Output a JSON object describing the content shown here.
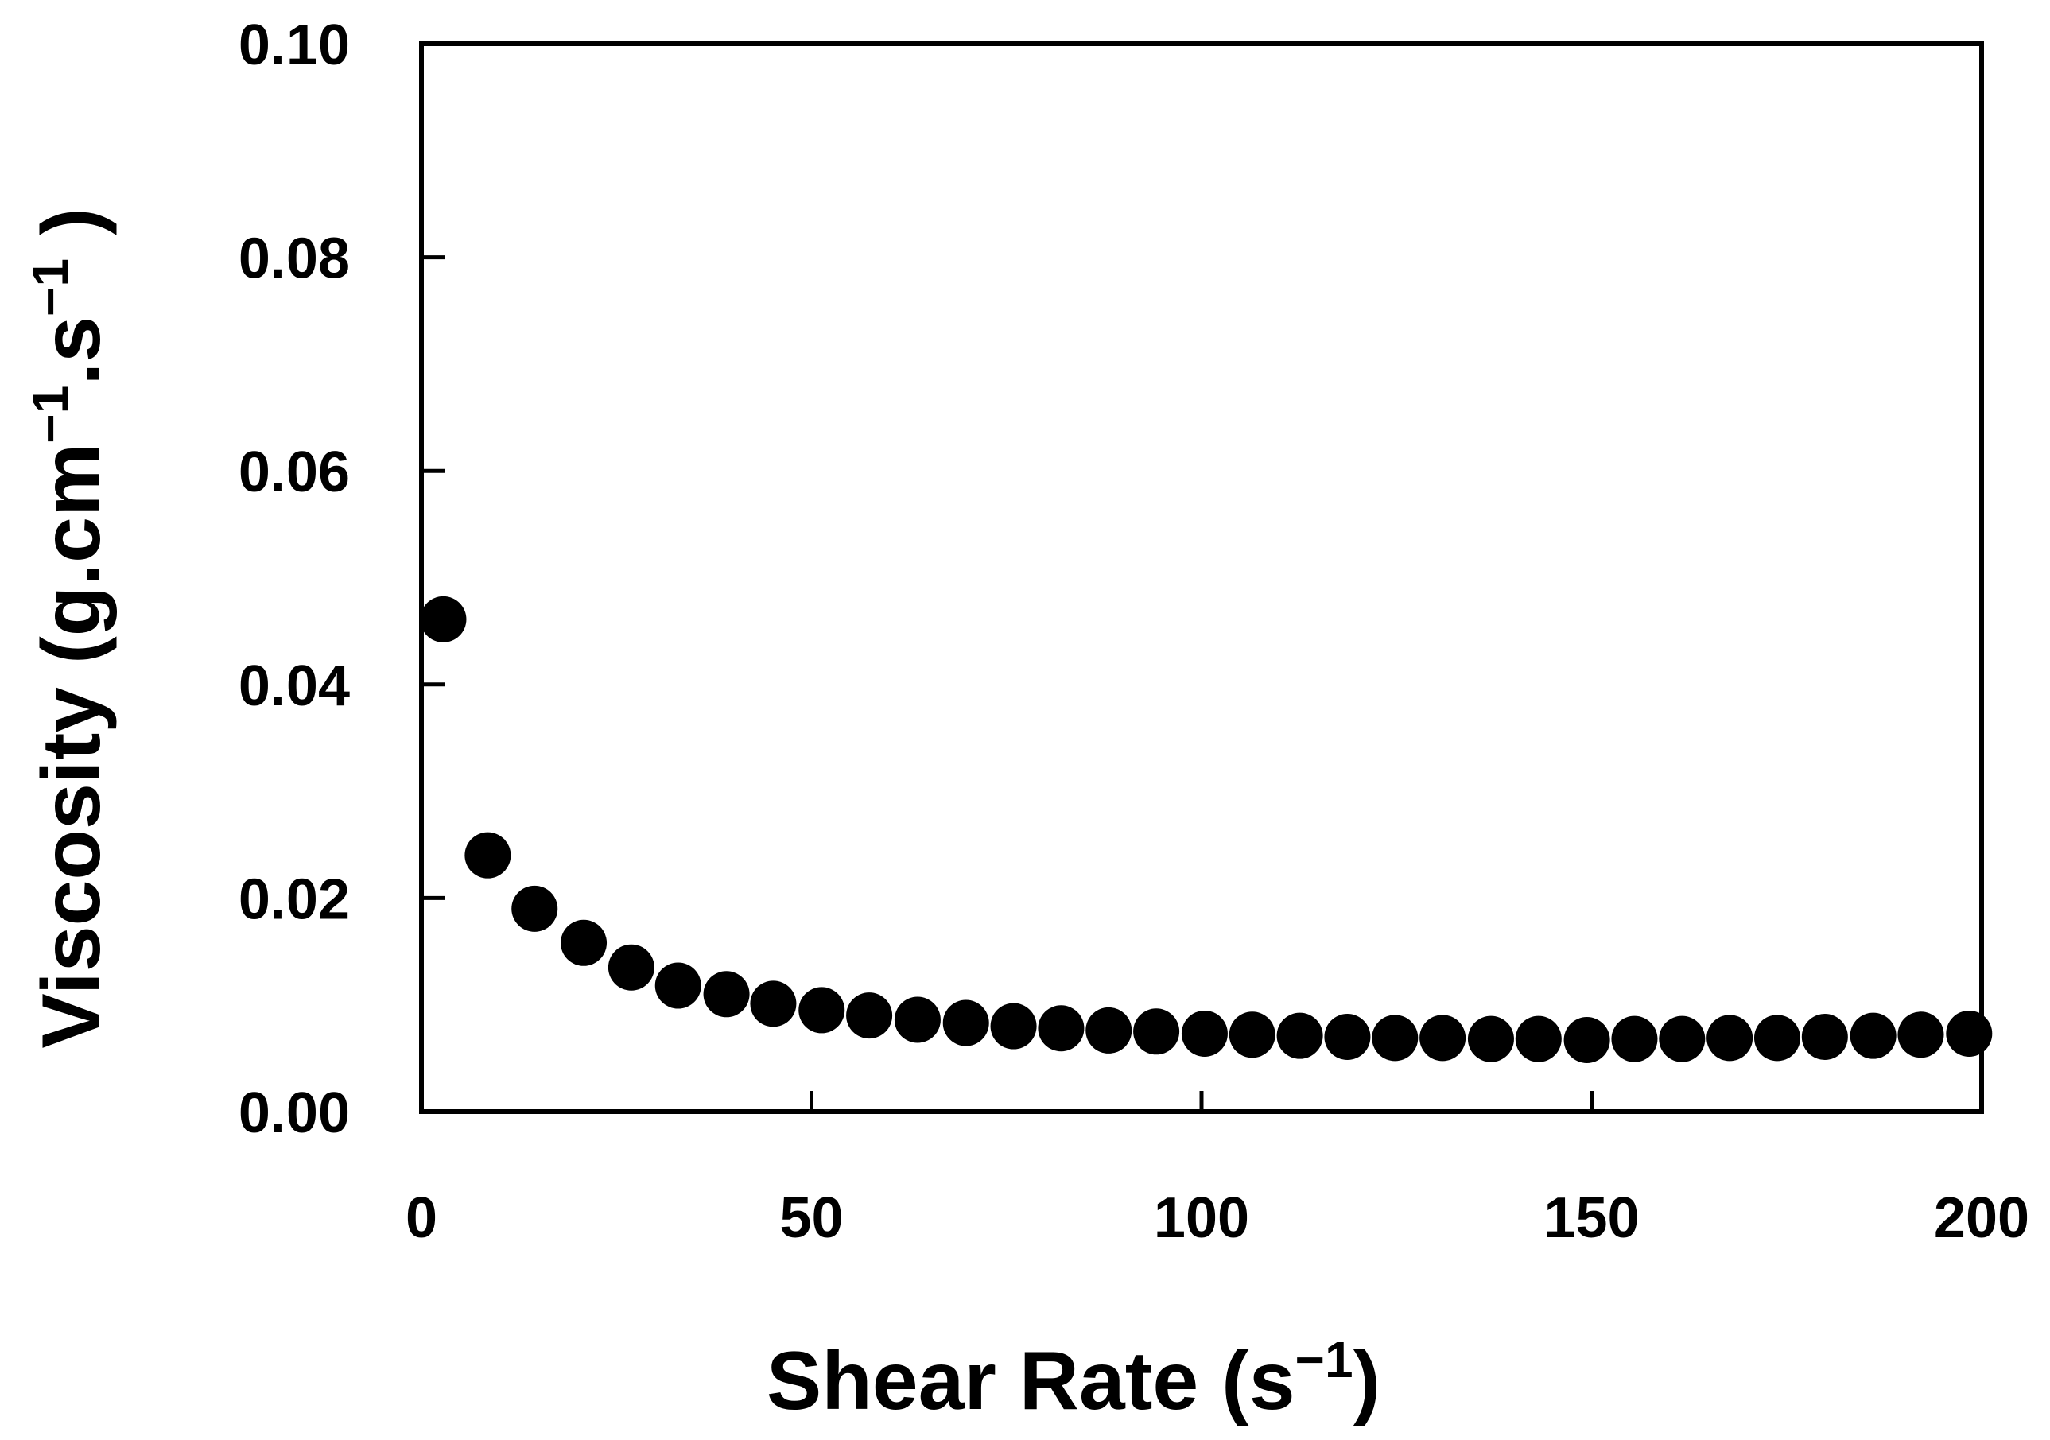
{
  "chart_data": {
    "type": "scatter",
    "title": "",
    "xlabel": {
      "main": "Shear Rate (s",
      "sup": "−1",
      "close": ")"
    },
    "ylabel": {
      "main": "Viscosity (g.cm",
      "sup1": "−1",
      "mid": ".s",
      "sup2": "−1",
      "close": " )"
    },
    "xlim": [
      0,
      200
    ],
    "ylim": [
      0,
      0.1
    ],
    "xticks": [
      {
        "value": 0,
        "label": "0"
      },
      {
        "value": 50,
        "label": "50"
      },
      {
        "value": 100,
        "label": "100"
      },
      {
        "value": 150,
        "label": "150"
      },
      {
        "value": 200,
        "label": "200"
      }
    ],
    "yticks": [
      {
        "value": 0.0,
        "label": "0.00"
      },
      {
        "value": 0.02,
        "label": "0.02"
      },
      {
        "value": 0.04,
        "label": "0.04"
      },
      {
        "value": 0.06,
        "label": "0.06"
      },
      {
        "value": 0.08,
        "label": "0.08"
      },
      {
        "value": 0.1,
        "label": "0.10"
      }
    ],
    "grid": false,
    "legend": "none",
    "marker_color": "#000000",
    "series": [
      {
        "name": "Viscosity",
        "points": [
          {
            "x": 2.8,
            "y": 0.0461
          },
          {
            "x": 8.5,
            "y": 0.024
          },
          {
            "x": 14.5,
            "y": 0.019
          },
          {
            "x": 20.8,
            "y": 0.0158
          },
          {
            "x": 26.9,
            "y": 0.0135
          },
          {
            "x": 32.9,
            "y": 0.0118
          },
          {
            "x": 39.1,
            "y": 0.011
          },
          {
            "x": 45.1,
            "y": 0.0101
          },
          {
            "x": 51.3,
            "y": 0.0095
          },
          {
            "x": 57.4,
            "y": 0.009
          },
          {
            "x": 63.6,
            "y": 0.0086
          },
          {
            "x": 69.8,
            "y": 0.0083
          },
          {
            "x": 75.9,
            "y": 0.008
          },
          {
            "x": 82.0,
            "y": 0.0078
          },
          {
            "x": 88.1,
            "y": 0.0076
          },
          {
            "x": 94.2,
            "y": 0.0075
          },
          {
            "x": 100.4,
            "y": 0.0073
          },
          {
            "x": 106.5,
            "y": 0.0072
          },
          {
            "x": 112.6,
            "y": 0.0071
          },
          {
            "x": 118.7,
            "y": 0.007
          },
          {
            "x": 124.8,
            "y": 0.0069
          },
          {
            "x": 130.9,
            "y": 0.0069
          },
          {
            "x": 137.1,
            "y": 0.0068
          },
          {
            "x": 143.2,
            "y": 0.0068
          },
          {
            "x": 149.4,
            "y": 0.0067
          },
          {
            "x": 155.5,
            "y": 0.0068
          },
          {
            "x": 161.6,
            "y": 0.0068
          },
          {
            "x": 167.7,
            "y": 0.0069
          },
          {
            "x": 173.8,
            "y": 0.0069
          },
          {
            "x": 179.9,
            "y": 0.007
          },
          {
            "x": 186.1,
            "y": 0.0071
          },
          {
            "x": 192.2,
            "y": 0.0072
          },
          {
            "x": 198.4,
            "y": 0.0073
          }
        ]
      }
    ]
  }
}
